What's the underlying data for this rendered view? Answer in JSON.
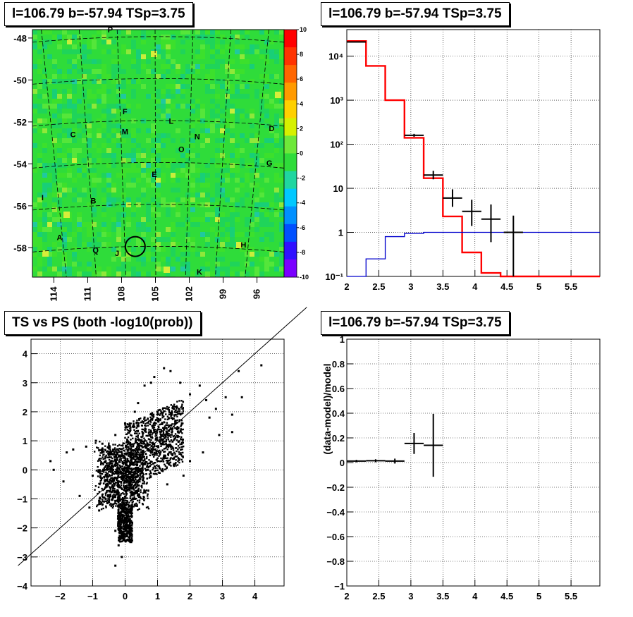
{
  "titles": {
    "map": "l=106.79 b=-57.94 TSp=3.75",
    "spectrum": "l=106.79 b=-57.94 TSp=3.75",
    "scatter": "TS vs PS (both -log10(prob))",
    "residual": "l=106.79 b=-57.94 TSp=3.75"
  },
  "chart_data": [
    {
      "type": "heatmap",
      "title": "l=106.79 b=-57.94 TSp=3.75",
      "x_ticks": [
        "114",
        "111",
        "108",
        "105",
        "102",
        "99",
        "96"
      ],
      "y_ticks": [
        "-48",
        "-50",
        "-52",
        "-54",
        "-56",
        "-58"
      ],
      "colorbar_ticks": [
        "10",
        "8",
        "6",
        "4",
        "2",
        "0",
        "-2",
        "-4",
        "-6",
        "-8",
        "-10"
      ],
      "zlim": [
        -10,
        10
      ],
      "source_labels": [
        {
          "label": "P",
          "l": 109.0,
          "b": -47.6
        },
        {
          "label": "F",
          "l": 107.7,
          "b": -51.5
        },
        {
          "label": "L",
          "l": 103.6,
          "b": -51.95
        },
        {
          "label": "C",
          "l": 112.3,
          "b": -52.6
        },
        {
          "label": "M",
          "l": 107.7,
          "b": -52.45
        },
        {
          "label": "N",
          "l": 101.3,
          "b": -52.7
        },
        {
          "label": "D",
          "l": 94.7,
          "b": -52.3
        },
        {
          "label": "O",
          "l": 102.7,
          "b": -53.3
        },
        {
          "label": "G",
          "l": 94.9,
          "b": -53.95
        },
        {
          "label": "E",
          "l": 105.1,
          "b": -54.5
        },
        {
          "label": "I",
          "l": 115.0,
          "b": -55.6
        },
        {
          "label": "B",
          "l": 110.5,
          "b": -55.75
        },
        {
          "label": "A",
          "l": 113.5,
          "b": -57.5
        },
        {
          "label": "Q",
          "l": 110.3,
          "b": -58.1
        },
        {
          "label": "J",
          "l": 108.4,
          "b": -58.25
        },
        {
          "label": "H",
          "l": 97.2,
          "b": -57.85
        },
        {
          "label": "K",
          "l": 101.1,
          "b": -59.15
        }
      ],
      "marker_circle": {
        "l": 106.79,
        "b": -57.94
      }
    },
    {
      "type": "line",
      "title": "l=106.79 b=-57.94 TSp=3.75",
      "x_ticks": [
        "2",
        "2.5",
        "3",
        "3.5",
        "4",
        "4.5",
        "5",
        "5.5"
      ],
      "y_ticks": [
        "10⁻¹",
        "1",
        "10",
        "10²",
        "10³",
        "10⁴"
      ],
      "xlim": [
        2.0,
        5.95
      ],
      "ylim": [
        0.1,
        40000
      ],
      "yscale": "log",
      "grid": true,
      "series": [
        {
          "style": "step",
          "color": "#ff0000",
          "bin_edges": [
            2.0,
            2.3,
            2.6,
            2.9,
            3.2,
            3.5,
            3.8,
            4.1,
            4.4,
            5.95
          ],
          "values": [
            22000,
            6000,
            1000,
            140,
            17,
            2.3,
            0.35,
            0.12,
            0.1
          ]
        },
        {
          "style": "step",
          "color": "#0000cc",
          "bin_edges": [
            2.0,
            2.3,
            2.6,
            2.9,
            3.2,
            5.95
          ],
          "values": [
            0.1,
            0.25,
            0.8,
            0.95,
            1.0
          ]
        },
        {
          "style": "errorbars",
          "color": "#000000",
          "points": [
            {
              "x": 2.15,
              "y": 21000,
              "xerr": 0.15,
              "ylo": 20500,
              "yhi": 21500
            },
            {
              "x": 3.05,
              "y": 160,
              "xerr": 0.15,
              "ylo": 148,
              "yhi": 172
            },
            {
              "x": 3.35,
              "y": 20,
              "xerr": 0.15,
              "ylo": 16,
              "yhi": 25
            },
            {
              "x": 3.65,
              "y": 6,
              "xerr": 0.15,
              "ylo": 3.8,
              "yhi": 9.5
            },
            {
              "x": 3.95,
              "y": 3,
              "xerr": 0.15,
              "ylo": 1.4,
              "yhi": 5.5
            },
            {
              "x": 4.25,
              "y": 2,
              "xerr": 0.15,
              "ylo": 0.6,
              "yhi": 4.3
            },
            {
              "x": 4.6,
              "y": 1,
              "xerr": 0.15,
              "ylo": 0.1,
              "yhi": 2.4
            }
          ]
        }
      ]
    },
    {
      "type": "scatter",
      "title": "TS vs PS (both -log10(prob))",
      "x_ticks": [
        "−2",
        "−1",
        "0",
        "1",
        "2",
        "3",
        "4"
      ],
      "y_ticks": [
        "−4",
        "−3",
        "−2",
        "−1",
        "0",
        "1",
        "2",
        "3",
        "4"
      ],
      "xlim": [
        -2.9,
        4.9
      ],
      "ylim": [
        -4.0,
        4.5
      ],
      "grid": true,
      "diagonal_line": [
        [
          -3.3,
          -3.3
        ],
        [
          5.6,
          5.6
        ]
      ],
      "points": [
        [
          -2.3,
          0.3
        ],
        [
          -2.2,
          0.0
        ],
        [
          -1.9,
          -0.4
        ],
        [
          -1.8,
          0.6
        ],
        [
          -1.6,
          0.7
        ],
        [
          -1.4,
          -0.9
        ],
        [
          -1.2,
          0.8
        ],
        [
          -1.1,
          -1.3
        ],
        [
          -0.9,
          1.0
        ],
        [
          -0.8,
          -1.4
        ],
        [
          -0.7,
          0.9
        ],
        [
          -0.6,
          -0.6
        ],
        [
          -0.5,
          -1.1
        ],
        [
          -0.3,
          -2.1
        ],
        [
          -0.3,
          1.2
        ],
        [
          -0.2,
          -2.6
        ],
        [
          -0.1,
          -3.0
        ],
        [
          -0.3,
          -3.3
        ],
        [
          0.1,
          -1.7
        ],
        [
          0.0,
          1.6
        ],
        [
          0.3,
          2.0
        ],
        [
          0.4,
          2.3
        ],
        [
          0.6,
          2.9
        ],
        [
          0.8,
          3.0
        ],
        [
          0.9,
          3.2
        ],
        [
          1.2,
          3.5
        ],
        [
          1.4,
          3.4
        ],
        [
          1.7,
          3.0
        ],
        [
          2.0,
          2.6
        ],
        [
          2.3,
          2.9
        ],
        [
          2.5,
          2.4
        ],
        [
          2.6,
          1.8
        ],
        [
          2.8,
          2.1
        ],
        [
          2.9,
          1.2
        ],
        [
          3.1,
          2.5
        ],
        [
          3.3,
          1.9
        ],
        [
          3.5,
          3.4
        ],
        [
          3.6,
          2.5
        ],
        [
          4.2,
          3.6
        ],
        [
          3.3,
          1.3
        ],
        [
          2.4,
          0.6
        ],
        [
          2.0,
          0.3
        ],
        [
          1.8,
          -0.2
        ],
        [
          1.3,
          -0.5
        ],
        [
          1.1,
          0.9
        ],
        [
          1.5,
          2.1
        ],
        [
          0.9,
          1.3
        ],
        [
          0.5,
          0.6
        ],
        [
          0.2,
          0.3
        ],
        [
          0.0,
          -0.2
        ],
        [
          -0.2,
          -0.4
        ],
        [
          0.2,
          -0.8
        ],
        [
          -0.4,
          0.1
        ],
        [
          0.6,
          1.8
        ],
        [
          1.0,
          2.0
        ],
        [
          1.6,
          1.4
        ],
        [
          0.7,
          0.0
        ],
        [
          -1.0,
          -0.2
        ],
        [
          -0.6,
          0.3
        ],
        [
          0.3,
          -1.2
        ]
      ]
    },
    {
      "type": "scatter",
      "title": "l=106.79 b=-57.94 TSp=3.75",
      "ylabel": "(data-model)/model",
      "x_ticks": [
        "2",
        "2.5",
        "3",
        "3.5",
        "4",
        "4.5",
        "5",
        "5.5"
      ],
      "y_ticks": [
        "−1",
        "−0.8",
        "−0.6",
        "−0.4",
        "−0.2",
        "0",
        "0.2",
        "0.4",
        "0.6",
        "0.8",
        "1"
      ],
      "xlim": [
        2.0,
        5.95
      ],
      "ylim": [
        -1.0,
        1.0
      ],
      "grid": true,
      "points": [
        {
          "x": 2.15,
          "y": 0.012,
          "xerr": 0.15,
          "yerr": 0.01
        },
        {
          "x": 2.45,
          "y": 0.015,
          "xerr": 0.15,
          "yerr": 0.012
        },
        {
          "x": 2.75,
          "y": 0.012,
          "xerr": 0.15,
          "yerr": 0.02
        },
        {
          "x": 3.05,
          "y": 0.155,
          "xerr": 0.15,
          "yerr": 0.085
        },
        {
          "x": 3.35,
          "y": 0.14,
          "xerr": 0.15,
          "yerr": 0.255
        }
      ]
    }
  ]
}
